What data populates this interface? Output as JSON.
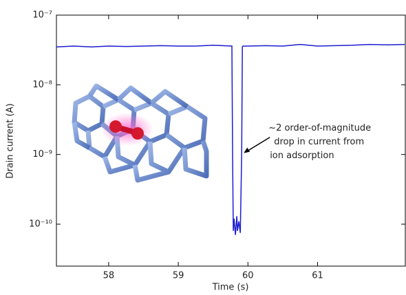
{
  "chart_data": {
    "type": "line",
    "xlabel": "Time (s)",
    "ylabel": "Drain current (A)",
    "x": [
      57.25,
      57.5,
      57.75,
      58.0,
      58.25,
      58.5,
      58.75,
      59.0,
      59.25,
      59.5,
      59.77,
      59.78,
      59.79,
      59.8,
      59.82,
      59.84,
      59.85,
      59.87,
      59.89,
      59.91,
      59.92,
      59.93,
      60.0,
      60.25,
      60.5,
      60.75,
      61.0,
      61.25,
      61.5,
      61.75,
      62.0,
      62.25
    ],
    "values": [
      3.5e-08,
      3.6e-08,
      3.5e-08,
      3.6e-08,
      3.55e-08,
      3.6e-08,
      3.65e-08,
      3.6e-08,
      3.6e-08,
      3.7e-08,
      3.6e-08,
      1e-09,
      8e-11,
      1.2e-10,
      7e-11,
      1.3e-10,
      8e-11,
      1.1e-10,
      7.5e-11,
      1e-09,
      3.5e-08,
      3.6e-08,
      3.6e-08,
      3.65e-08,
      3.6e-08,
      3.8e-08,
      3.6e-08,
      3.65e-08,
      3.7e-08,
      3.8e-08,
      3.75e-08,
      3.8e-08
    ],
    "color": "#1c1cd0",
    "xlim": [
      57.25,
      62.26
    ],
    "xticks": [
      58,
      59,
      60,
      61
    ],
    "ylim": [
      2.5e-11,
      1e-07
    ],
    "log_y": true,
    "yticks": [
      {
        "value": 1e-10,
        "label": "10⁻¹⁰"
      },
      {
        "value": 1e-09,
        "label": "10⁻⁹"
      },
      {
        "value": 1e-08,
        "label": "10⁻⁸"
      },
      {
        "value": 1e-07,
        "label": "10⁻⁷"
      }
    ],
    "annotation": {
      "lines": [
        "~2 order-of-magnitude",
        "drop in current from",
        "ion adsorption"
      ],
      "x": 59.92,
      "y": 1e-09
    }
  }
}
